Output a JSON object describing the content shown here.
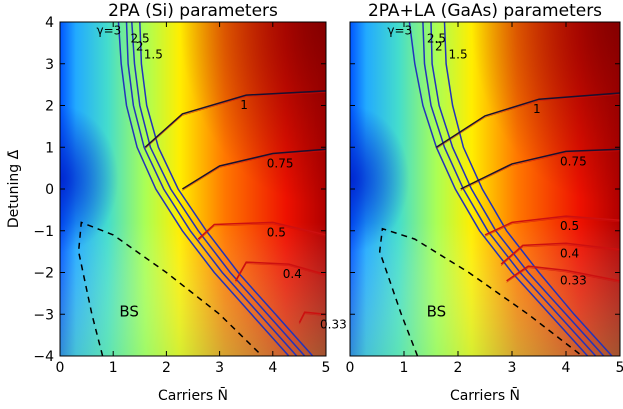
{
  "chart_data": [
    {
      "type": "heatmap",
      "title": "2PA (Si) parameters",
      "xlabel": "Carriers N̄",
      "ylabel": "Detuning Δ̄",
      "xlim": [
        0,
        5
      ],
      "ylim": [
        -4,
        4
      ],
      "xticks": [
        "0",
        "1",
        "2",
        "3",
        "4",
        "5"
      ],
      "yticks": [
        "4",
        "3",
        "2",
        "1",
        "0",
        "−1",
        "−2",
        "−3",
        "−4"
      ],
      "colormap": "jet",
      "colors": {
        "blue_contours": "#2233bb",
        "dark_contours": "#1a1030",
        "red_contours": "#cc1010",
        "dashed": "#000000"
      },
      "region_label": "BS",
      "contours": [
        {
          "label": "γ=3",
          "points": [
            [
              1.1,
              4.0
            ],
            [
              1.15,
              3.0
            ],
            [
              1.25,
              2.0
            ],
            [
              1.45,
              1.0
            ],
            [
              1.8,
              0.0
            ],
            [
              2.3,
              -1.0
            ],
            [
              2.9,
              -2.0
            ],
            [
              3.6,
              -3.0
            ],
            [
              4.3,
              -4.0
            ]
          ]
        },
        {
          "label": "2.5",
          "points": [
            [
              1.25,
              4.0
            ],
            [
              1.28,
              3.0
            ],
            [
              1.38,
              2.0
            ],
            [
              1.58,
              1.0
            ],
            [
              1.95,
              0.0
            ],
            [
              2.45,
              -1.0
            ],
            [
              3.05,
              -2.0
            ],
            [
              3.75,
              -3.0
            ],
            [
              4.45,
              -4.0
            ]
          ]
        },
        {
          "label": "2",
          "points": [
            [
              1.35,
              4.0
            ],
            [
              1.4,
              3.0
            ],
            [
              1.5,
              2.0
            ],
            [
              1.7,
              1.0
            ],
            [
              2.08,
              0.0
            ],
            [
              2.6,
              -1.0
            ],
            [
              3.2,
              -2.0
            ],
            [
              3.9,
              -3.0
            ],
            [
              4.6,
              -4.0
            ]
          ]
        },
        {
          "label": "1.5",
          "points": [
            [
              1.5,
              4.0
            ],
            [
              1.53,
              3.0
            ],
            [
              1.63,
              2.0
            ],
            [
              1.85,
              1.0
            ],
            [
              2.22,
              0.0
            ],
            [
              2.75,
              -1.0
            ],
            [
              3.35,
              -2.0
            ],
            [
              4.05,
              -3.0
            ],
            [
              4.75,
              -4.0
            ]
          ]
        },
        {
          "label": "1",
          "points": [
            [
              1.6,
              1.0
            ],
            [
              2.3,
              1.8
            ],
            [
              3.5,
              2.25
            ],
            [
              5.0,
              2.35
            ]
          ]
        },
        {
          "label": "0.75",
          "points": [
            [
              2.3,
              0.0
            ],
            [
              3.0,
              0.55
            ],
            [
              4.0,
              0.85
            ],
            [
              5.0,
              0.95
            ]
          ]
        },
        {
          "label": "0.5",
          "points": [
            [
              2.6,
              -1.2
            ],
            [
              2.9,
              -0.85
            ],
            [
              4.0,
              -0.8
            ],
            [
              5.0,
              -1.1
            ]
          ]
        },
        {
          "label": "0.4",
          "points": [
            [
              3.3,
              -2.2
            ],
            [
              3.5,
              -1.75
            ],
            [
              4.3,
              -1.8
            ],
            [
              5.0,
              -2.05
            ]
          ]
        },
        {
          "label": "0.33",
          "points": [
            [
              4.5,
              -3.2
            ],
            [
              4.6,
              -2.95
            ],
            [
              5.0,
              -3.0
            ]
          ]
        }
      ],
      "dashed_boundary": [
        [
          0.8,
          -4.0
        ],
        [
          0.6,
          -3.0
        ],
        [
          0.35,
          -1.5
        ],
        [
          0.4,
          -0.8
        ],
        [
          1.0,
          -1.1
        ],
        [
          2.0,
          -2.0
        ],
        [
          3.0,
          -3.0
        ],
        [
          3.8,
          -4.0
        ]
      ]
    },
    {
      "type": "heatmap",
      "title": "2PA+LA (GaAs) parameters",
      "xlabel": "Carriers N̄",
      "ylabel": "",
      "xlim": [
        0,
        5
      ],
      "ylim": [
        -4,
        4
      ],
      "xticks": [
        "0",
        "1",
        "2",
        "3",
        "4",
        "5"
      ],
      "yticks": [],
      "colormap": "jet",
      "colors": {
        "blue_contours": "#2233bb",
        "dark_contours": "#1a1030",
        "red_contours": "#cc1010",
        "dashed": "#000000"
      },
      "region_label": "BS",
      "contours": [
        {
          "label": "γ=3",
          "points": [
            [
              1.1,
              4.0
            ],
            [
              1.2,
              3.0
            ],
            [
              1.35,
              2.0
            ],
            [
              1.6,
              1.0
            ],
            [
              1.95,
              0.0
            ],
            [
              2.4,
              -1.0
            ],
            [
              3.0,
              -2.0
            ],
            [
              3.7,
              -3.0
            ],
            [
              4.4,
              -4.0
            ]
          ]
        },
        {
          "label": "2.5",
          "points": [
            [
              1.35,
              4.0
            ],
            [
              1.38,
              3.0
            ],
            [
              1.5,
              2.0
            ],
            [
              1.75,
              1.0
            ],
            [
              2.1,
              0.0
            ],
            [
              2.55,
              -1.0
            ],
            [
              3.15,
              -2.0
            ],
            [
              3.85,
              -3.0
            ],
            [
              4.55,
              -4.0
            ]
          ]
        },
        {
          "label": "2",
          "points": [
            [
              1.5,
              4.0
            ],
            [
              1.52,
              3.0
            ],
            [
              1.65,
              2.0
            ],
            [
              1.9,
              1.0
            ],
            [
              2.25,
              0.0
            ],
            [
              2.7,
              -1.0
            ],
            [
              3.3,
              -2.0
            ],
            [
              4.0,
              -3.0
            ],
            [
              4.7,
              -4.0
            ]
          ]
        },
        {
          "label": "1.5",
          "points": [
            [
              1.75,
              4.0
            ],
            [
              1.78,
              3.0
            ],
            [
              1.9,
              2.0
            ],
            [
              2.1,
              1.0
            ],
            [
              2.45,
              0.0
            ],
            [
              2.9,
              -1.0
            ],
            [
              3.5,
              -2.0
            ],
            [
              4.15,
              -3.0
            ],
            [
              4.85,
              -4.0
            ]
          ]
        },
        {
          "label": "1",
          "points": [
            [
              1.6,
              1.0
            ],
            [
              2.5,
              1.75
            ],
            [
              3.5,
              2.15
            ],
            [
              5.0,
              2.3
            ]
          ]
        },
        {
          "label": "0.75",
          "points": [
            [
              2.05,
              0.0
            ],
            [
              3.0,
              0.6
            ],
            [
              4.0,
              0.9
            ],
            [
              5.0,
              0.95
            ]
          ]
        },
        {
          "label": "0.5",
          "points": [
            [
              2.5,
              -1.1
            ],
            [
              3.0,
              -0.8
            ],
            [
              4.0,
              -0.65
            ],
            [
              5.0,
              -0.75
            ]
          ]
        },
        {
          "label": "0.4",
          "points": [
            [
              2.8,
              -1.8
            ],
            [
              3.2,
              -1.35
            ],
            [
              4.0,
              -1.3
            ],
            [
              5.0,
              -1.45
            ]
          ]
        },
        {
          "label": "0.33",
          "points": [
            [
              2.9,
              -2.2
            ],
            [
              3.3,
              -1.85
            ],
            [
              4.0,
              -1.95
            ],
            [
              5.0,
              -2.2
            ]
          ]
        }
      ],
      "dashed_boundary": [
        [
          1.25,
          -4.0
        ],
        [
          0.95,
          -3.0
        ],
        [
          0.55,
          -1.5
        ],
        [
          0.6,
          -0.95
        ],
        [
          1.2,
          -1.2
        ],
        [
          2.2,
          -2.0
        ],
        [
          3.3,
          -3.0
        ],
        [
          4.3,
          -4.0
        ]
      ]
    }
  ]
}
